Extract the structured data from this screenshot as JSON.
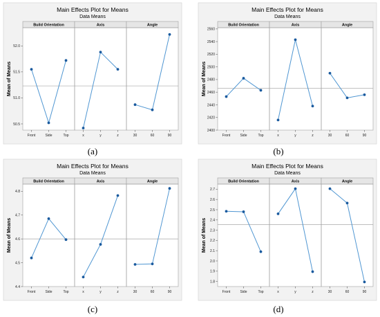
{
  "colors": {
    "background": "#f2f2f2",
    "plot_bg": "#ffffff",
    "strip_bg": "#e6e6e6",
    "line": "#4f96d2",
    "point": "#1a5a9e",
    "ref_line": "#b4b4b4",
    "frame": "#a0a0a0"
  },
  "chart_data": [
    {
      "type": "line",
      "title": "Main Effects Plot for Means",
      "subtitle": "Data Means",
      "ylabel": "Mean of Means",
      "caption": "(a)",
      "ylim": [
        50.38,
        52.35
      ],
      "yticks": [
        50.5,
        51.0,
        51.5,
        52.0
      ],
      "ytick_labels": [
        "50.5",
        "51.0",
        "51.5",
        "52.0"
      ],
      "reference_line": 51.23,
      "panels": [
        {
          "factor": "Build Orientation",
          "levels": [
            "Front",
            "Side",
            "Top"
          ],
          "values": [
            51.55,
            50.52,
            51.72
          ]
        },
        {
          "factor": "Axis",
          "levels": [
            "x",
            "y",
            "z"
          ],
          "values": [
            50.42,
            51.88,
            51.55
          ]
        },
        {
          "factor": "Angle",
          "levels": [
            "30",
            "60",
            "90"
          ],
          "values": [
            50.87,
            50.77,
            52.22
          ]
        }
      ]
    },
    {
      "type": "line",
      "title": "Main Effects Plot for Means",
      "subtitle": "Data Means",
      "ylabel": "Mean of Means",
      "caption": "(b)",
      "ylim": [
        2400,
        2562
      ],
      "yticks": [
        2400,
        2420,
        2440,
        2460,
        2480,
        2500,
        2520,
        2540,
        2560
      ],
      "ytick_labels": [
        "2400",
        "2420",
        "2440",
        "2460",
        "2480",
        "2500",
        "2520",
        "2540",
        "2560"
      ],
      "reference_line": 2466,
      "panels": [
        {
          "factor": "Build Orientation",
          "levels": [
            "Front",
            "Side",
            "Top"
          ],
          "values": [
            2453,
            2482,
            2463
          ]
        },
        {
          "factor": "Axis",
          "levels": [
            "x",
            "y",
            "z"
          ],
          "values": [
            2416,
            2543,
            2438
          ]
        },
        {
          "factor": "Angle",
          "levels": [
            "30",
            "60",
            "90"
          ],
          "values": [
            2490,
            2451,
            2456
          ]
        }
      ]
    },
    {
      "type": "line",
      "title": "Main Effects Plot for Means",
      "subtitle": "Data Means",
      "ylabel": "Mean of Means",
      "caption": "(c)",
      "ylim": [
        4.4,
        4.83
      ],
      "yticks": [
        4.4,
        4.5,
        4.6,
        4.7,
        4.8
      ],
      "ytick_labels": [
        "4.4",
        "4.5",
        "4.6",
        "4.7",
        "4.8"
      ],
      "reference_line": 4.6,
      "panels": [
        {
          "factor": "Build Orientation",
          "levels": [
            "Front",
            "Side",
            "Top"
          ],
          "values": [
            4.52,
            4.685,
            4.597
          ]
        },
        {
          "factor": "Axis",
          "levels": [
            "x",
            "y",
            "z"
          ],
          "values": [
            4.44,
            4.577,
            4.782
          ]
        },
        {
          "factor": "Angle",
          "levels": [
            "30",
            "60",
            "90"
          ],
          "values": [
            4.493,
            4.495,
            4.812
          ]
        }
      ]
    },
    {
      "type": "line",
      "title": "Main Effects Plot for Means",
      "subtitle": "Data Means",
      "ylabel": "Mean of Means",
      "caption": "(d)",
      "ylim": [
        1.75,
        2.75
      ],
      "yticks": [
        1.8,
        1.9,
        2.0,
        2.1,
        2.2,
        2.3,
        2.4,
        2.5,
        2.6,
        2.7
      ],
      "ytick_labels": [
        "1.8",
        "1.9",
        "2.0",
        "2.1",
        "2.2",
        "2.3",
        "2.4",
        "2.5",
        "2.6",
        "2.7"
      ],
      "reference_line": 2.355,
      "panels": [
        {
          "factor": "Build Orientation",
          "levels": [
            "Front",
            "Side",
            "Top"
          ],
          "values": [
            2.485,
            2.48,
            2.09
          ]
        },
        {
          "factor": "Axis",
          "levels": [
            "x",
            "y",
            "z"
          ],
          "values": [
            2.46,
            2.705,
            1.895
          ]
        },
        {
          "factor": "Angle",
          "levels": [
            "30",
            "60",
            "90"
          ],
          "values": [
            2.705,
            2.565,
            1.795
          ]
        }
      ]
    }
  ]
}
